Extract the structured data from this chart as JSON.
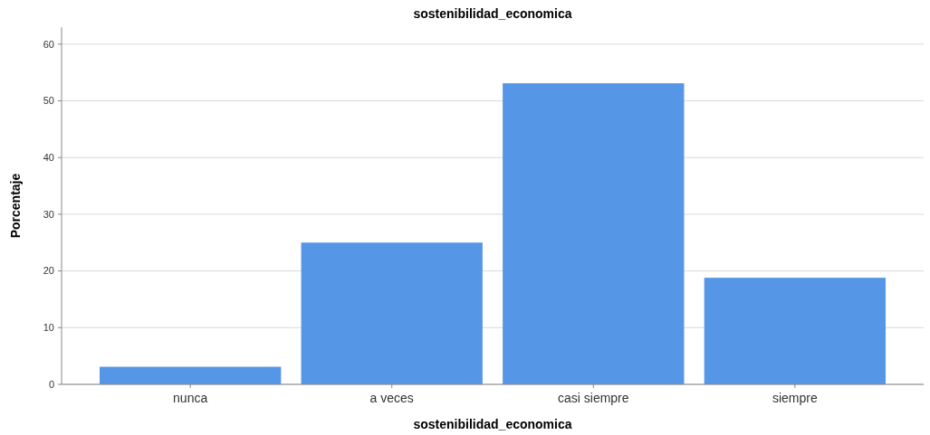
{
  "chart_data": {
    "type": "bar",
    "title": "sostenibilidad_economica",
    "xlabel": "sostenibilidad_economica",
    "ylabel": "Porcentaje",
    "categories": [
      "nunca",
      "a veces",
      "casi siempre",
      "siempre"
    ],
    "values": [
      3.1,
      25.0,
      53.1,
      18.8
    ],
    "color": "#5596e6",
    "ylim": [
      0,
      63
    ],
    "yticks": [
      0,
      10,
      20,
      30,
      40,
      50,
      60
    ],
    "grid": "y"
  }
}
